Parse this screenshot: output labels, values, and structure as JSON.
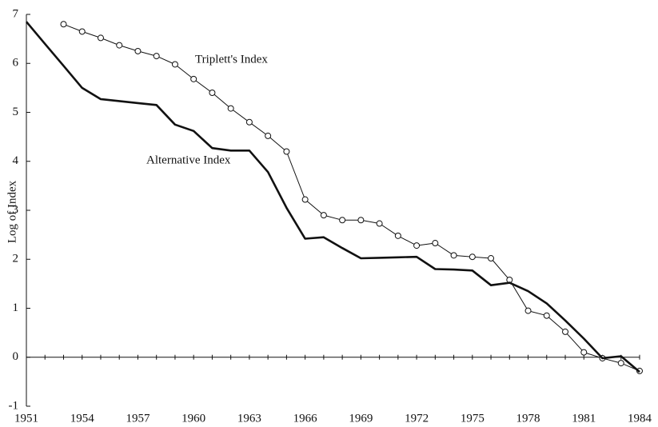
{
  "chart_data": {
    "type": "line",
    "y_label": "Log of Index",
    "annotations": [
      "Triplett's Index",
      "Alternative Index"
    ],
    "x": [
      1951,
      1952,
      1953,
      1954,
      1955,
      1956,
      1957,
      1958,
      1959,
      1960,
      1961,
      1962,
      1963,
      1964,
      1965,
      1966,
      1967,
      1968,
      1969,
      1970,
      1971,
      1972,
      1973,
      1974,
      1975,
      1976,
      1977,
      1978,
      1979,
      1980,
      1981,
      1982,
      1983,
      1984
    ],
    "series": [
      {
        "name": "Triplett's Index",
        "color": "#111111",
        "marker": "circle",
        "values": [
          null,
          null,
          6.8,
          6.65,
          6.52,
          6.37,
          6.25,
          6.15,
          5.98,
          5.68,
          5.4,
          5.08,
          4.8,
          4.52,
          4.2,
          3.22,
          2.9,
          2.8,
          2.8,
          2.73,
          2.48,
          2.28,
          2.33,
          2.08,
          2.05,
          2.02,
          1.58,
          0.95,
          0.85,
          0.52,
          0.1,
          -0.02,
          -0.12,
          -0.28
        ]
      },
      {
        "name": "Alternative Index",
        "color": "#111111",
        "marker": "none",
        "values": [
          6.85,
          6.4,
          5.95,
          5.5,
          5.27,
          5.23,
          5.19,
          5.15,
          4.75,
          4.62,
          4.27,
          4.22,
          4.22,
          3.78,
          3.05,
          2.42,
          2.45,
          2.23,
          2.02,
          2.03,
          2.04,
          2.05,
          1.8,
          1.79,
          1.77,
          1.47,
          1.52,
          1.35,
          1.1,
          0.75,
          0.38,
          -0.02,
          0.02,
          -0.3
        ]
      }
    ],
    "xlim": [
      1951,
      1984
    ],
    "xticks": [
      1951,
      1954,
      1957,
      1960,
      1963,
      1966,
      1969,
      1972,
      1975,
      1978,
      1981,
      1984
    ],
    "ylim": [
      -1,
      7
    ],
    "yticks": [
      -1,
      0,
      1,
      2,
      3,
      4,
      5,
      6,
      7
    ]
  }
}
